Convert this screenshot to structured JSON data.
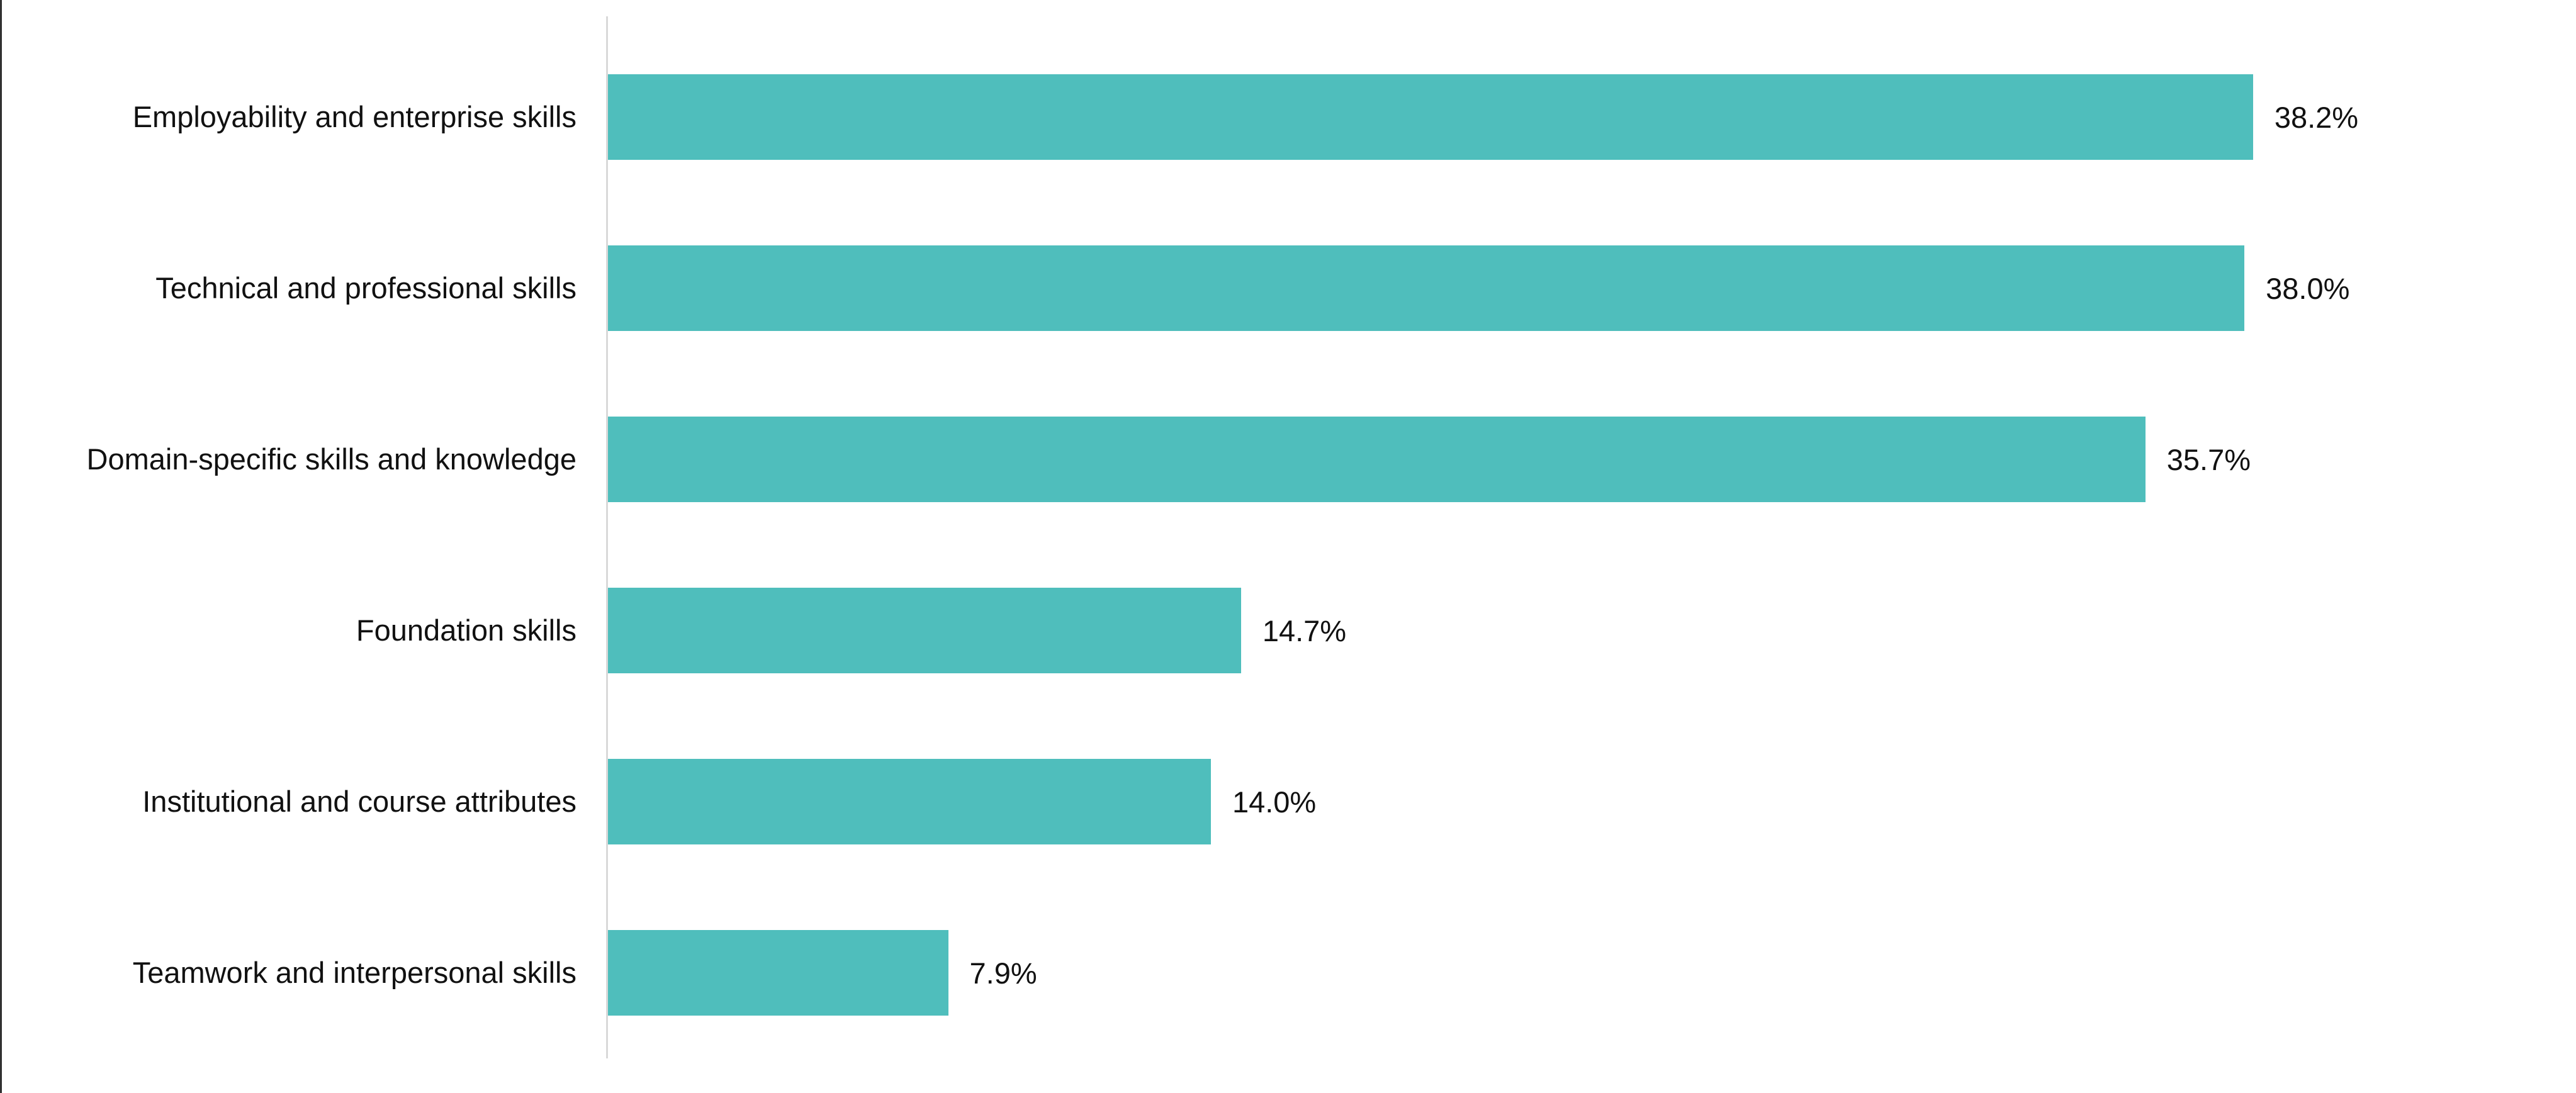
{
  "chart_data": {
    "type": "bar",
    "orientation": "horizontal",
    "title": "",
    "xlabel": "",
    "ylabel": "",
    "categories": [
      "Employability and enterprise skills",
      "Technical and professional skills",
      "Domain-specific skills and knowledge",
      "Foundation skills",
      "Institutional and course attributes",
      "Teamwork and interpersonal skills"
    ],
    "values": [
      38.2,
      38.0,
      35.7,
      14.7,
      14.0,
      7.9
    ],
    "value_labels": [
      "38.2%",
      "38.0%",
      "35.7%",
      "14.7%",
      "14.0%",
      "7.9%"
    ],
    "xlim": [
      0,
      45.7
    ],
    "grid": false,
    "legend": false,
    "data_labels": "outside-end",
    "bar_color": "#4fbebc",
    "axis_line_color": "#d9d9d9",
    "label_color": "#111111",
    "background_color": "#ffffff"
  }
}
